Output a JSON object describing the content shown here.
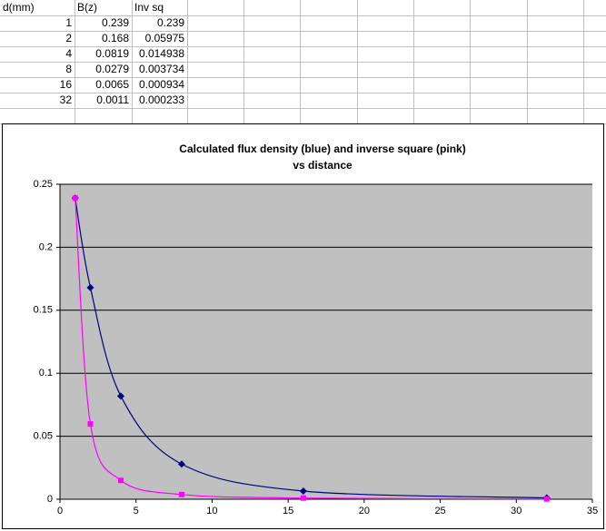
{
  "table": {
    "header": [
      "d(mm)",
      "B(z)",
      "Inv sq"
    ],
    "rows": [
      [
        1,
        0.239,
        0.239
      ],
      [
        2,
        0.168,
        0.05975
      ],
      [
        4,
        0.0819,
        0.014938
      ],
      [
        8,
        0.0279,
        0.003734
      ],
      [
        16,
        0.0065,
        0.000934
      ],
      [
        32,
        0.0011,
        0.000233
      ]
    ]
  },
  "chart_data": {
    "type": "line",
    "title": [
      "Calculated flux density (blue) and inverse square (pink)",
      "vs distance"
    ],
    "x": [
      1,
      2,
      4,
      8,
      16,
      32
    ],
    "series": [
      {
        "color": "#000080",
        "marker": "diamond",
        "values": [
          0.239,
          0.168,
          0.0819,
          0.0279,
          0.0065,
          0.0011
        ]
      },
      {
        "color": "#ff00ff",
        "marker": "square",
        "values": [
          0.239,
          0.05975,
          0.014938,
          0.003734,
          0.000934,
          0.000233
        ]
      }
    ],
    "xlim": [
      0,
      35
    ],
    "xticks": [
      0,
      5,
      10,
      15,
      20,
      25,
      30,
      35
    ],
    "ylim": [
      0,
      0.25
    ],
    "yticks": [
      0,
      0.05,
      0.1,
      0.15,
      0.2,
      0.25
    ],
    "grid": true,
    "smooth": true
  }
}
